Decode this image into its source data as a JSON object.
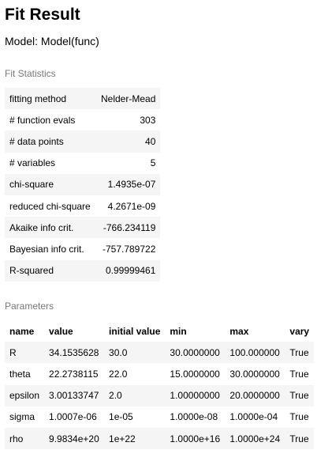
{
  "title": "Fit Result",
  "model": "Model: Model(func)",
  "fit_statistics": {
    "caption": "Fit Statistics",
    "rows": [
      {
        "label": "fitting method",
        "value": "Nelder-Mead"
      },
      {
        "label": "# function evals",
        "value": "303"
      },
      {
        "label": "# data points",
        "value": "40"
      },
      {
        "label": "# variables",
        "value": "5"
      },
      {
        "label": "chi-square",
        "value": "1.4935e-07"
      },
      {
        "label": "reduced chi-square",
        "value": "4.2671e-09"
      },
      {
        "label": "Akaike info crit.",
        "value": "-766.234119"
      },
      {
        "label": "Bayesian info crit.",
        "value": "-757.789722"
      },
      {
        "label": "R-squared",
        "value": "0.99999461"
      }
    ]
  },
  "parameters": {
    "caption": "Parameters",
    "headers": [
      "name",
      "value",
      "initial value",
      "min",
      "max",
      "vary"
    ],
    "rows": [
      [
        "R",
        "34.1535628",
        "30.0",
        "30.0000000",
        "100.000000",
        "True"
      ],
      [
        "theta",
        "22.2738115",
        "22.0",
        "15.0000000",
        "30.0000000",
        "True"
      ],
      [
        "epsilon",
        "3.00133747",
        "2.0",
        "1.00000000",
        "20.0000000",
        "True"
      ],
      [
        "sigma",
        "1.0007e-06",
        "1e-05",
        "1.0000e-08",
        "1.0000e-04",
        "True"
      ],
      [
        "rho",
        "9.9834e+20",
        "1e+22",
        "1.0000e+16",
        "1.0000e+24",
        "True"
      ]
    ]
  }
}
